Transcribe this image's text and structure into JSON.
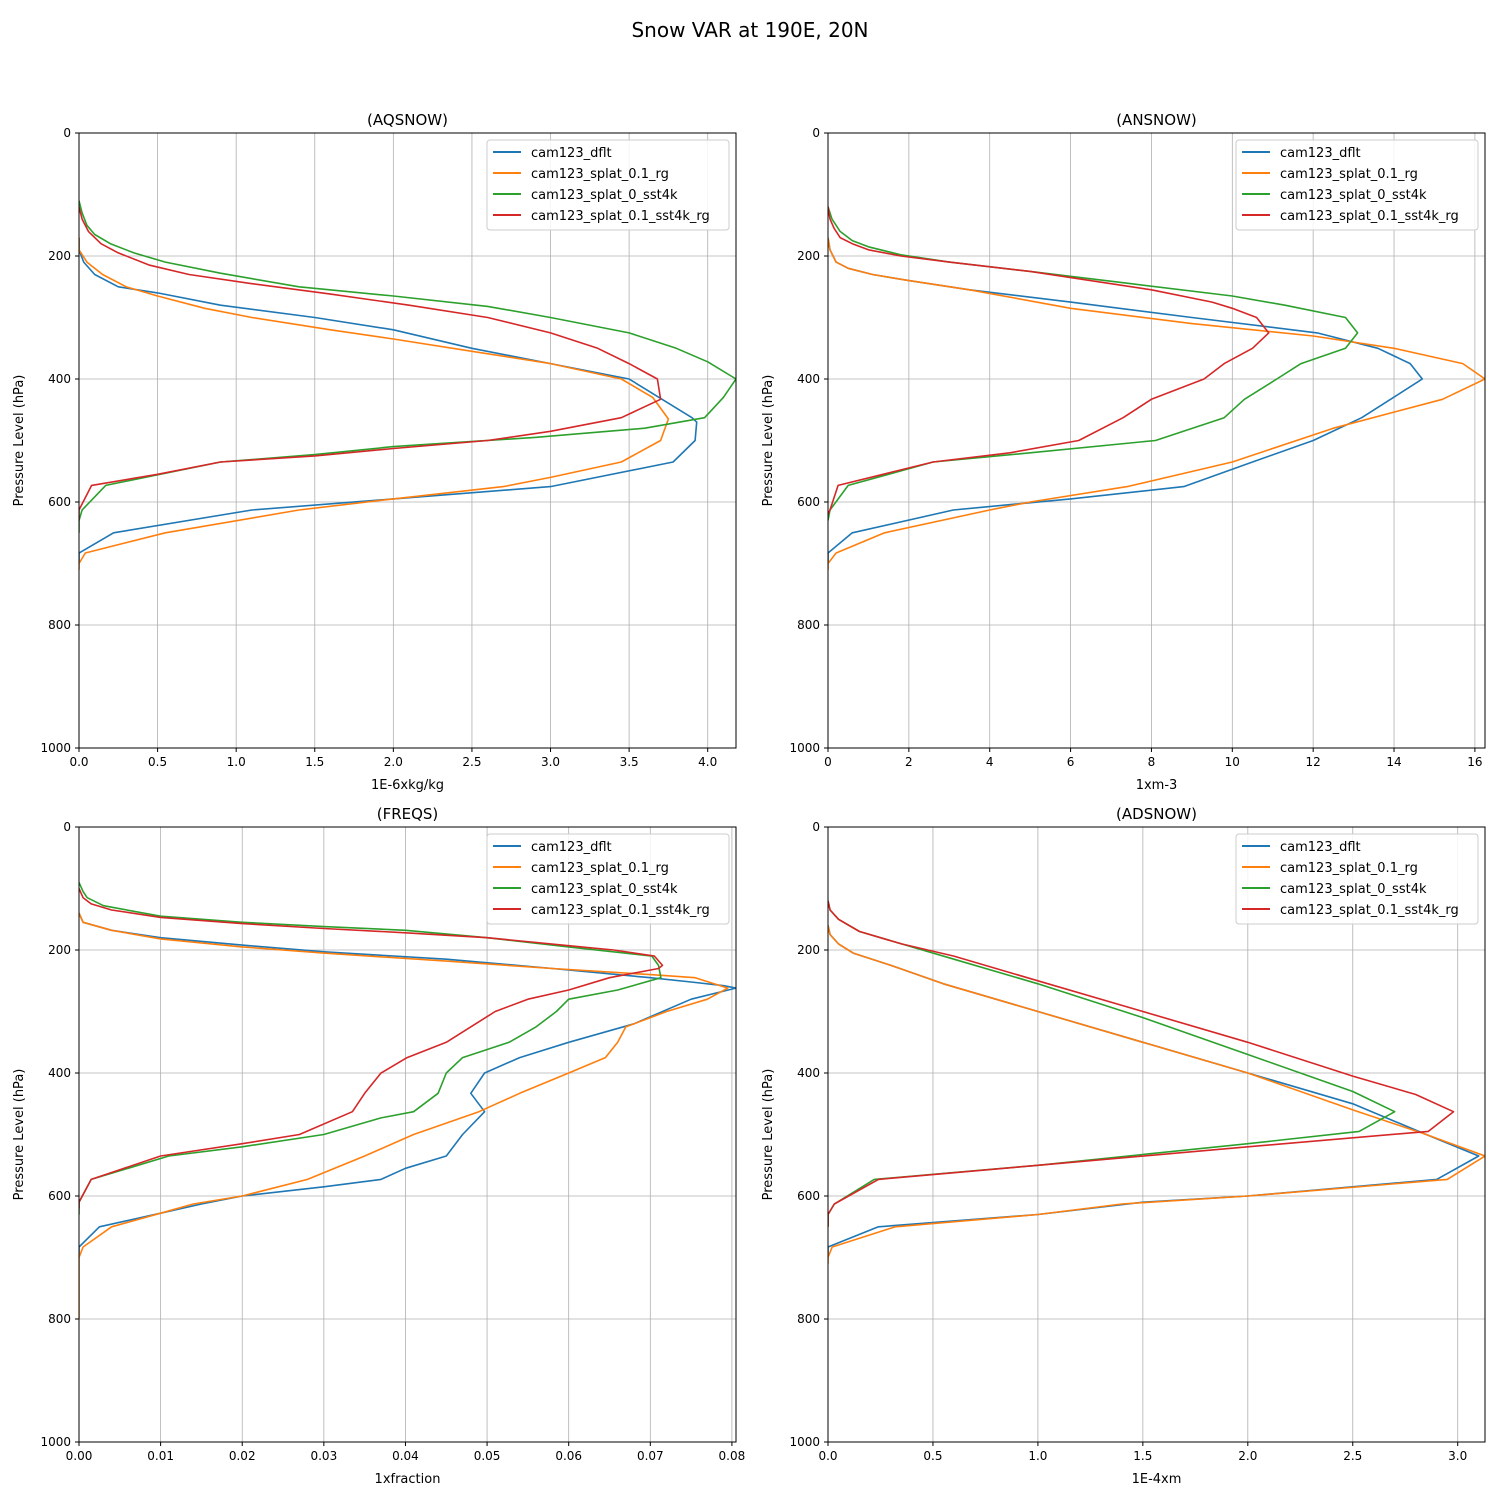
{
  "figure_title": "Snow VAR at 190E, 20N",
  "colors": {
    "cam123_dflt": "#1f77b4",
    "cam123_splat_0.1_rg": "#ff7f0e",
    "cam123_splat_0_sst4k": "#2ca02c",
    "cam123_splat_0.1_sst4k_rg": "#d62728"
  },
  "chart_data": [
    {
      "type": "line",
      "title": "(AQSNOW)",
      "xlabel": "1E-6xkg/kg",
      "ylabel": "Pressure Level (hPa)",
      "xlim": [
        0,
        4.18
      ],
      "ylim": [
        1000,
        0
      ],
      "xticks": [
        0.0,
        0.5,
        1.0,
        1.5,
        2.0,
        2.5,
        3.0,
        3.5,
        4.0
      ],
      "xtick_labels": [
        "0.0",
        "0.5",
        "1.0",
        "1.5",
        "2.0",
        "2.5",
        "3.0",
        "3.5",
        "4.0"
      ],
      "yticks": [
        0,
        200,
        400,
        600,
        800,
        1000
      ],
      "ytick_labels": [
        "0",
        "200",
        "400",
        "600",
        "800",
        "1000"
      ],
      "grid": true,
      "legend": "upper right",
      "series": [
        {
          "name": "cam123_dflt",
          "x": [
            0,
            0,
            0.03,
            0.1,
            0.25,
            0.5,
            0.9,
            1.5,
            2.0,
            2.5,
            3.0,
            3.5,
            3.9,
            3.93,
            3.92,
            3.78,
            3.0,
            2.0,
            1.1,
            0.22,
            0.0,
            0.0
          ],
          "y": [
            170,
            190,
            210,
            230,
            250,
            260,
            280,
            300,
            320,
            350,
            375,
            400,
            463,
            470,
            500,
            535,
            575,
            595,
            613,
            650,
            683,
            700
          ]
        },
        {
          "name": "cam123_splat_0.1_rg",
          "x": [
            0,
            0,
            0.05,
            0.15,
            0.3,
            0.5,
            0.8,
            1.1,
            1.6,
            2.0,
            2.5,
            3.0,
            3.45,
            3.65,
            3.75,
            3.7,
            3.45,
            3.0,
            2.7,
            2.0,
            1.4,
            0.55,
            0.04,
            0.0,
            0.0
          ],
          "y": [
            170,
            190,
            210,
            230,
            250,
            265,
            285,
            300,
            320,
            335,
            355,
            375,
            400,
            430,
            465,
            500,
            535,
            560,
            575,
            595,
            613,
            650,
            683,
            700,
            710
          ]
        },
        {
          "name": "cam123_splat_0_sst4k",
          "x": [
            0,
            0.02,
            0.05,
            0.1,
            0.2,
            0.35,
            0.55,
            0.9,
            1.4,
            2.0,
            2.6,
            3.0,
            3.5,
            3.8,
            4.0,
            4.18,
            4.1,
            3.98,
            3.6,
            2.9,
            2.0,
            1.5,
            0.9,
            0.17,
            0.02,
            0.0,
            0.0
          ],
          "y": [
            110,
            130,
            150,
            165,
            180,
            195,
            210,
            228,
            250,
            265,
            282,
            300,
            325,
            350,
            372,
            400,
            430,
            463,
            480,
            495,
            510,
            523,
            535,
            573,
            613,
            630,
            650
          ]
        },
        {
          "name": "cam123_splat_0.1_sst4k_rg",
          "x": [
            0,
            0.02,
            0.06,
            0.14,
            0.25,
            0.45,
            0.7,
            1.1,
            1.6,
            2.1,
            2.6,
            3.0,
            3.3,
            3.5,
            3.68,
            3.7,
            3.45,
            3.0,
            2.6,
            2.0,
            1.5,
            0.9,
            0.5,
            0.08,
            0.0,
            0.0
          ],
          "y": [
            120,
            140,
            160,
            180,
            195,
            215,
            230,
            245,
            262,
            280,
            300,
            325,
            350,
            375,
            400,
            433,
            463,
            485,
            500,
            513,
            525,
            535,
            555,
            573,
            613,
            630
          ]
        }
      ]
    },
    {
      "type": "line",
      "title": "(ANSNOW)",
      "xlabel": "1xm-3",
      "ylabel": "Pressure Level (hPa)",
      "xlim": [
        0,
        16.25
      ],
      "ylim": [
        1000,
        0
      ],
      "xticks": [
        0,
        2,
        4,
        6,
        8,
        10,
        12,
        14,
        16
      ],
      "xtick_labels": [
        "0",
        "2",
        "4",
        "6",
        "8",
        "10",
        "12",
        "14",
        "16"
      ],
      "yticks": [
        0,
        200,
        400,
        600,
        800,
        1000
      ],
      "ytick_labels": [
        "0",
        "200",
        "400",
        "600",
        "800",
        "1000"
      ],
      "grid": true,
      "legend": "upper right",
      "series": [
        {
          "name": "cam123_dflt",
          "x": [
            0,
            0.05,
            0.2,
            0.5,
            1.1,
            2.0,
            3.5,
            6.0,
            9.0,
            12.1,
            13.6,
            14.4,
            14.7,
            13.2,
            12.0,
            10.5,
            8.8,
            6.0,
            3.1,
            0.6,
            0.0,
            0.0
          ],
          "y": [
            170,
            190,
            210,
            220,
            230,
            240,
            255,
            275,
            300,
            325,
            350,
            375,
            400,
            463,
            500,
            535,
            575,
            595,
            613,
            650,
            683,
            700
          ]
        },
        {
          "name": "cam123_splat_0.1_rg",
          "x": [
            0,
            0.05,
            0.2,
            0.5,
            1.1,
            2.0,
            3.5,
            6.0,
            9.0,
            12.0,
            14.0,
            15.7,
            16.25,
            15.2,
            12.5,
            10.0,
            7.4,
            5.0,
            4.0,
            1.4,
            0.2,
            0.0,
            0.0
          ],
          "y": [
            170,
            190,
            210,
            220,
            230,
            240,
            255,
            285,
            310,
            330,
            350,
            375,
            400,
            433,
            480,
            535,
            575,
            600,
            613,
            650,
            683,
            700,
            710
          ]
        },
        {
          "name": "cam123_splat_0_sst4k",
          "x": [
            0,
            0.1,
            0.3,
            0.6,
            1.0,
            1.8,
            3.0,
            5.0,
            7.5,
            10.0,
            11.3,
            12.8,
            13.1,
            12.8,
            11.7,
            11.1,
            10.3,
            9.8,
            8.1,
            5.0,
            2.6,
            0.5,
            0.05,
            0.0
          ],
          "y": [
            120,
            140,
            160,
            175,
            185,
            198,
            210,
            225,
            245,
            265,
            280,
            300,
            325,
            350,
            375,
            400,
            433,
            463,
            500,
            520,
            535,
            573,
            613,
            630
          ]
        },
        {
          "name": "cam123_splat_0.1_sst4k_rg",
          "x": [
            0,
            0.05,
            0.15,
            0.3,
            0.6,
            1.0,
            1.8,
            3.0,
            5.0,
            7.0,
            8.0,
            9.5,
            10.0,
            10.6,
            10.9,
            10.5,
            9.8,
            9.3,
            8.0,
            7.3,
            6.2,
            4.5,
            2.6,
            0.25,
            0.05,
            0.0
          ],
          "y": [
            120,
            140,
            155,
            170,
            180,
            190,
            200,
            210,
            225,
            245,
            255,
            275,
            285,
            300,
            325,
            350,
            375,
            400,
            433,
            463,
            500,
            520,
            535,
            573,
            613,
            620
          ]
        }
      ]
    },
    {
      "type": "line",
      "title": "(FREQS)",
      "xlabel": "1xfraction",
      "ylabel": "Pressure Level (hPa)",
      "xlim": [
        0,
        0.0805
      ],
      "ylim": [
        1000,
        0
      ],
      "xticks": [
        0.0,
        0.01,
        0.02,
        0.03,
        0.04,
        0.05,
        0.06,
        0.07,
        0.08
      ],
      "xtick_labels": [
        "0.00",
        "0.01",
        "0.02",
        "0.03",
        "0.04",
        "0.05",
        "0.06",
        "0.07",
        "0.08"
      ],
      "yticks": [
        0,
        200,
        400,
        600,
        800,
        1000
      ],
      "ytick_labels": [
        "0",
        "200",
        "400",
        "600",
        "800",
        "1000"
      ],
      "grid": true,
      "legend": "upper right",
      "series": [
        {
          "name": "cam123_dflt",
          "x": [
            0,
            0.0005,
            0.004,
            0.01,
            0.02,
            0.03,
            0.045,
            0.058,
            0.07,
            0.075,
            0.079,
            0.0805,
            0.075,
            0.068,
            0.06,
            0.054,
            0.0497,
            0.048,
            0.0497,
            0.047,
            0.045,
            0.04,
            0.037,
            0.03,
            0.02,
            0.015,
            0.01,
            0.0025,
            0.0,
            0.0
          ],
          "y": [
            140,
            155,
            168,
            180,
            192,
            203,
            215,
            230,
            245,
            252,
            258,
            262,
            280,
            320,
            350,
            375,
            400,
            433,
            463,
            500,
            535,
            555,
            573,
            585,
            600,
            613,
            628,
            650,
            683,
            700
          ]
        },
        {
          "name": "cam123_splat_0.1_rg",
          "x": [
            0,
            0.0005,
            0.004,
            0.01,
            0.02,
            0.03,
            0.045,
            0.058,
            0.07,
            0.0755,
            0.0795,
            0.077,
            0.072,
            0.067,
            0.066,
            0.0645,
            0.06,
            0.054,
            0.049,
            0.041,
            0.035,
            0.028,
            0.02,
            0.014,
            0.01,
            0.004,
            0.0005,
            0.0,
            0.0
          ],
          "y": [
            140,
            155,
            168,
            182,
            195,
            205,
            218,
            230,
            240,
            245,
            262,
            280,
            300,
            325,
            350,
            375,
            400,
            433,
            463,
            500,
            535,
            573,
            600,
            613,
            628,
            650,
            683,
            700,
            800
          ]
        },
        {
          "name": "cam123_splat_0_sst4k",
          "x": [
            0,
            0.0005,
            0.001,
            0.003,
            0.01,
            0.02,
            0.03,
            0.04,
            0.05,
            0.06,
            0.0702,
            0.071,
            0.0713,
            0.066,
            0.06,
            0.0585,
            0.056,
            0.0527,
            0.047,
            0.045,
            0.044,
            0.041,
            0.037,
            0.03,
            0.02,
            0.011,
            0.0015,
            0.0,
            0.0
          ],
          "y": [
            90,
            105,
            115,
            128,
            145,
            155,
            162,
            168,
            180,
            195,
            210,
            225,
            245,
            265,
            280,
            300,
            325,
            350,
            375,
            400,
            433,
            463,
            473,
            500,
            520,
            535,
            573,
            610,
            630
          ]
        },
        {
          "name": "cam123_splat_0.1_sst4k_rg",
          "x": [
            0,
            0.0005,
            0.0015,
            0.004,
            0.01,
            0.02,
            0.03,
            0.04,
            0.05,
            0.06,
            0.0655,
            0.0705,
            0.0715,
            0.071,
            0.065,
            0.06,
            0.055,
            0.051,
            0.045,
            0.0402,
            0.037,
            0.035,
            0.0335,
            0.027,
            0.02,
            0.01,
            0.0015,
            0.0,
            0.0
          ],
          "y": [
            100,
            115,
            125,
            135,
            147,
            157,
            165,
            172,
            180,
            193,
            200,
            210,
            225,
            230,
            245,
            265,
            280,
            300,
            350,
            375,
            400,
            433,
            463,
            500,
            515,
            535,
            573,
            610,
            620
          ]
        }
      ]
    },
    {
      "type": "line",
      "title": "(ADSNOW)",
      "xlabel": "1E-4xm",
      "ylabel": "Pressure Level (hPa)",
      "xlim": [
        0,
        3.13
      ],
      "ylim": [
        1000,
        0
      ],
      "xticks": [
        0.0,
        0.5,
        1.0,
        1.5,
        2.0,
        2.5,
        3.0
      ],
      "xtick_labels": [
        "0.0",
        "0.5",
        "1.0",
        "1.5",
        "2.0",
        "2.5",
        "3.0"
      ],
      "yticks": [
        0,
        200,
        400,
        600,
        800,
        1000
      ],
      "ytick_labels": [
        "0",
        "200",
        "400",
        "600",
        "800",
        "1000"
      ],
      "grid": true,
      "legend": "upper right",
      "series": [
        {
          "name": "cam123_dflt",
          "x": [
            0,
            0.01,
            0.05,
            0.12,
            0.3,
            0.55,
            1.0,
            1.5,
            2.0,
            2.5,
            2.85,
            3.1,
            2.9,
            2.0,
            1.5,
            1.0,
            0.24,
            0.0,
            0.0
          ],
          "y": [
            160,
            175,
            190,
            205,
            225,
            255,
            300,
            350,
            400,
            450,
            500,
            535,
            573,
            600,
            610,
            630,
            650,
            683,
            700
          ]
        },
        {
          "name": "cam123_splat_0.1_rg",
          "x": [
            0,
            0.01,
            0.05,
            0.12,
            0.3,
            0.55,
            1.0,
            1.5,
            2.0,
            2.5,
            2.85,
            3.13,
            2.95,
            2.0,
            1.4,
            1.0,
            0.32,
            0.02,
            0.0,
            0.0
          ],
          "y": [
            160,
            175,
            190,
            205,
            225,
            255,
            300,
            350,
            400,
            460,
            500,
            535,
            573,
            600,
            613,
            630,
            650,
            683,
            700,
            710
          ]
        },
        {
          "name": "cam123_splat_0_sst4k",
          "x": [
            0,
            0.01,
            0.05,
            0.15,
            0.35,
            0.6,
            1.0,
            1.5,
            2.0,
            2.5,
            2.7,
            2.53,
            2.0,
            1.0,
            0.22,
            0.03,
            0.0,
            0.0
          ],
          "y": [
            120,
            135,
            150,
            170,
            190,
            215,
            255,
            310,
            370,
            430,
            463,
            495,
            515,
            550,
            573,
            613,
            630,
            650
          ]
        },
        {
          "name": "cam123_splat_0.1_sst4k_rg",
          "x": [
            0,
            0.01,
            0.05,
            0.15,
            0.35,
            0.6,
            1.0,
            1.5,
            2.0,
            2.5,
            2.8,
            2.98,
            2.86,
            2.0,
            1.0,
            0.24,
            0.03,
            0.0,
            0.0
          ],
          "y": [
            120,
            135,
            150,
            170,
            190,
            210,
            250,
            300,
            350,
            405,
            435,
            463,
            495,
            520,
            550,
            573,
            613,
            630,
            650
          ]
        }
      ]
    }
  ]
}
